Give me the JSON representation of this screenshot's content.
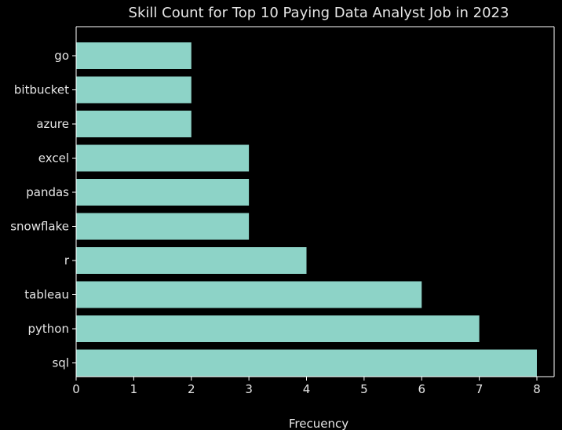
{
  "chart_data": {
    "type": "bar",
    "orientation": "horizontal",
    "title": "Skill Count for Top 10 Paying Data Analyst Job in 2023",
    "xlabel": "Frecuency",
    "ylabel": "",
    "categories": [
      "go",
      "bitbucket",
      "azure",
      "excel",
      "pandas",
      "snowflake",
      "r",
      "tableau",
      "python",
      "sql"
    ],
    "values": [
      2,
      2,
      2,
      3,
      3,
      3,
      4,
      6,
      7,
      8
    ],
    "xlim": [
      0,
      8.3
    ],
    "xticks": [
      "0",
      "1",
      "2",
      "3",
      "4",
      "5",
      "6",
      "7",
      "8"
    ],
    "grid": false,
    "colors": {
      "background": "#000000",
      "bar": "#8dd3c7",
      "axis": "#ffffff",
      "text": "#e6e6e6"
    }
  }
}
